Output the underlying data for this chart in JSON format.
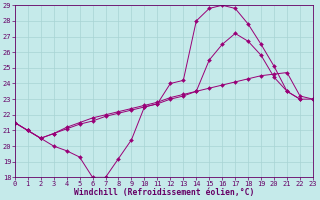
{
  "xlabel": "Windchill (Refroidissement éolien,°C)",
  "ylim": [
    18,
    29
  ],
  "xlim": [
    0,
    23
  ],
  "yticks": [
    18,
    19,
    20,
    21,
    22,
    23,
    24,
    25,
    26,
    27,
    28,
    29
  ],
  "xticks": [
    0,
    1,
    2,
    3,
    4,
    5,
    6,
    7,
    8,
    9,
    10,
    11,
    12,
    13,
    14,
    15,
    16,
    17,
    18,
    19,
    20,
    21,
    22,
    23
  ],
  "bg_color": "#c5eaea",
  "grid_color": "#a8d4d4",
  "line_color": "#990077",
  "line1_x": [
    0,
    1,
    2,
    3,
    4,
    5,
    6,
    7,
    8,
    9,
    10,
    11,
    12,
    13,
    14,
    15,
    16,
    17,
    18,
    19,
    20,
    21,
    22
  ],
  "line1_y": [
    21.5,
    21.0,
    20.5,
    20.0,
    19.7,
    19.3,
    18.0,
    18.0,
    19.2,
    20.4,
    22.5,
    22.7,
    24.0,
    24.2,
    28.0,
    28.8,
    29.0,
    28.8,
    27.8,
    26.5,
    25.1,
    23.5,
    23.0
  ],
  "line2_x": [
    0,
    1,
    2,
    3,
    4,
    5,
    6,
    7,
    8,
    9,
    10,
    11,
    12,
    13,
    14,
    15,
    16,
    17,
    18,
    19,
    20,
    21,
    22,
    23
  ],
  "line2_y": [
    21.5,
    21.0,
    20.5,
    20.8,
    21.1,
    21.4,
    21.6,
    21.9,
    22.1,
    22.3,
    22.5,
    22.7,
    23.0,
    23.2,
    23.5,
    25.5,
    26.5,
    27.2,
    26.7,
    25.8,
    24.4,
    23.5,
    23.0,
    23.0
  ],
  "line3_x": [
    0,
    1,
    2,
    3,
    4,
    5,
    6,
    7,
    8,
    9,
    10,
    11,
    12,
    13,
    14,
    15,
    16,
    17,
    18,
    19,
    20,
    21,
    22,
    23
  ],
  "line3_y": [
    21.5,
    21.0,
    20.5,
    20.8,
    21.2,
    21.5,
    21.8,
    22.0,
    22.2,
    22.4,
    22.6,
    22.8,
    23.1,
    23.3,
    23.5,
    23.7,
    23.9,
    24.1,
    24.3,
    24.5,
    24.6,
    24.7,
    23.2,
    23.0
  ],
  "font_color": "#660066",
  "tick_fontsize": 5.0,
  "label_fontsize": 5.8
}
